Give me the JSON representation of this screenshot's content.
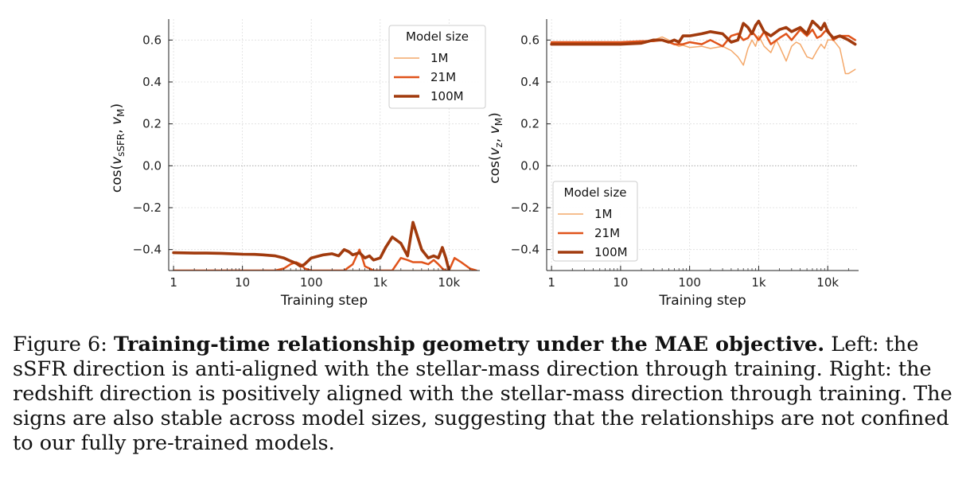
{
  "caption": {
    "label": "Figure 6:",
    "bold": "Training-time relationship geometry under the MAE objective.",
    "text": "Left: the sSFR direction is anti-aligned with the stellar-mass direction through training. Right: the redshift direction is positively aligned with the stellar-mass direction through training. The signs are also stable across model sizes, suggesting that the relationships are not confined to our fully pre-trained models."
  },
  "colors": {
    "1M": "#f4a86a",
    "21M": "#e0531a",
    "100M": "#a13a0d",
    "grid": "#dddddd",
    "zero_line": "#aaaaaa"
  },
  "chart_data": [
    {
      "type": "line",
      "xlabel": "Training step",
      "ylabel_parts": [
        "cos(",
        "v",
        "sSFR",
        ", ",
        "v",
        "M",
        ")"
      ],
      "x_scale": "log",
      "xlim": [
        0.85,
        28000
      ],
      "ylim": [
        -0.5,
        0.7
      ],
      "x_ticks": [
        1,
        10,
        100,
        1000,
        10000
      ],
      "x_tick_labels": [
        "1",
        "10",
        "100",
        "1k",
        "10k"
      ],
      "y_ticks": [
        -0.4,
        -0.2,
        0.0,
        0.2,
        0.4,
        0.6
      ],
      "y_tick_labels": [
        "−0.4",
        "−0.2",
        "0.0",
        "0.2",
        "0.4",
        "0.6"
      ],
      "grid": true,
      "zero_line": true,
      "legend": {
        "title": "Model size",
        "position": "top-right"
      },
      "series": [
        {
          "name": "1M",
          "x": [
            1,
            2,
            5,
            10,
            20,
            40,
            60,
            80,
            100,
            200,
            300,
            400,
            500,
            600,
            700,
            800,
            900,
            1000,
            2000,
            3000,
            4000,
            5000,
            6000,
            8000,
            10000,
            12000,
            15000,
            20000,
            25000
          ],
          "y": [
            -0.5,
            -0.5,
            -0.5,
            -0.5,
            -0.5,
            -0.5,
            -0.5,
            -0.5,
            -0.5,
            -0.5,
            -0.5,
            -0.5,
            -0.5,
            -0.5,
            -0.5,
            -0.5,
            -0.5,
            -0.5,
            -0.5,
            -0.5,
            -0.5,
            -0.5,
            -0.5,
            -0.5,
            -0.5,
            -0.5,
            -0.5,
            -0.5,
            -0.5
          ]
        },
        {
          "name": "21M",
          "x": [
            1,
            2,
            5,
            10,
            20,
            30,
            40,
            50,
            60,
            70,
            80,
            100,
            150,
            200,
            300,
            400,
            500,
            550,
            600,
            700,
            800,
            900,
            1000,
            1200,
            1500,
            2000,
            2500,
            3000,
            4000,
            5000,
            6000,
            7000,
            8000,
            9000,
            10000,
            12000,
            15000,
            20000,
            25000
          ],
          "y": [
            -0.5,
            -0.5,
            -0.5,
            -0.5,
            -0.5,
            -0.5,
            -0.49,
            -0.47,
            -0.46,
            -0.47,
            -0.49,
            -0.5,
            -0.5,
            -0.5,
            -0.5,
            -0.47,
            -0.4,
            -0.44,
            -0.48,
            -0.49,
            -0.5,
            -0.5,
            -0.5,
            -0.5,
            -0.5,
            -0.44,
            -0.45,
            -0.46,
            -0.46,
            -0.47,
            -0.45,
            -0.47,
            -0.49,
            -0.5,
            -0.5,
            -0.44,
            -0.46,
            -0.49,
            -0.5
          ]
        },
        {
          "name": "100M",
          "x": [
            1,
            2,
            3,
            5,
            7,
            10,
            15,
            20,
            30,
            40,
            50,
            60,
            70,
            80,
            100,
            150,
            200,
            250,
            300,
            350,
            400,
            500,
            600,
            700,
            800,
            1000,
            1200,
            1500,
            2000,
            2500,
            3000,
            4000,
            5000,
            6000,
            7000,
            8000,
            9000,
            10000
          ],
          "y": [
            -0.415,
            -0.417,
            -0.417,
            -0.418,
            -0.42,
            -0.422,
            -0.423,
            -0.425,
            -0.43,
            -0.44,
            -0.455,
            -0.465,
            -0.48,
            -0.47,
            -0.44,
            -0.425,
            -0.42,
            -0.43,
            -0.4,
            -0.41,
            -0.425,
            -0.415,
            -0.44,
            -0.43,
            -0.45,
            -0.44,
            -0.39,
            -0.34,
            -0.37,
            -0.43,
            -0.27,
            -0.4,
            -0.44,
            -0.43,
            -0.44,
            -0.39,
            -0.44,
            -0.5
          ]
        }
      ]
    },
    {
      "type": "line",
      "xlabel": "Training step",
      "ylabel_parts": [
        "cos(",
        "v",
        "z",
        ", ",
        "v",
        "M",
        ")"
      ],
      "x_scale": "log",
      "xlim": [
        0.85,
        28000
      ],
      "ylim": [
        -0.5,
        0.7
      ],
      "x_ticks": [
        1,
        10,
        100,
        1000,
        10000
      ],
      "x_tick_labels": [
        "1",
        "10",
        "100",
        "1k",
        "10k"
      ],
      "y_ticks": [
        -0.4,
        -0.2,
        0.0,
        0.2,
        0.4,
        0.6
      ],
      "y_tick_labels": [
        "−0.4",
        "−0.2",
        "0.0",
        "0.2",
        "0.4",
        "0.6"
      ],
      "grid": true,
      "zero_line": true,
      "legend": {
        "title": "Model size",
        "position": "lower-left"
      },
      "series": [
        {
          "name": "1M",
          "x": [
            1,
            2,
            5,
            10,
            20,
            30,
            40,
            50,
            60,
            70,
            80,
            100,
            150,
            200,
            300,
            400,
            500,
            600,
            700,
            800,
            900,
            1000,
            1200,
            1500,
            1800,
            2000,
            2500,
            3000,
            3500,
            4000,
            5000,
            6000,
            7000,
            8000,
            9000,
            10000,
            12000,
            15000,
            18000,
            20000,
            25000
          ],
          "y": [
            0.59,
            0.59,
            0.59,
            0.59,
            0.595,
            0.6,
            0.615,
            0.6,
            0.58,
            0.57,
            0.575,
            0.565,
            0.57,
            0.56,
            0.57,
            0.55,
            0.52,
            0.48,
            0.56,
            0.6,
            0.57,
            0.62,
            0.57,
            0.54,
            0.6,
            0.57,
            0.5,
            0.57,
            0.59,
            0.58,
            0.52,
            0.51,
            0.55,
            0.58,
            0.56,
            0.6,
            0.6,
            0.56,
            0.44,
            0.44,
            0.46
          ]
        },
        {
          "name": "21M",
          "x": [
            1,
            2,
            5,
            10,
            20,
            30,
            40,
            50,
            60,
            70,
            80,
            100,
            150,
            200,
            300,
            400,
            500,
            600,
            700,
            800,
            900,
            1000,
            1200,
            1500,
            2000,
            2500,
            3000,
            4000,
            5000,
            6000,
            7000,
            8000,
            9000,
            10000,
            12000,
            15000,
            20000,
            25000
          ],
          "y": [
            0.59,
            0.59,
            0.59,
            0.59,
            0.595,
            0.595,
            0.6,
            0.59,
            0.58,
            0.58,
            0.58,
            0.59,
            0.58,
            0.6,
            0.57,
            0.62,
            0.63,
            0.6,
            0.61,
            0.64,
            0.62,
            0.6,
            0.64,
            0.58,
            0.61,
            0.63,
            0.6,
            0.65,
            0.62,
            0.65,
            0.61,
            0.62,
            0.64,
            0.65,
            0.6,
            0.62,
            0.62,
            0.6
          ]
        },
        {
          "name": "100M",
          "x": [
            1,
            2,
            5,
            10,
            20,
            30,
            40,
            50,
            60,
            70,
            80,
            100,
            150,
            200,
            300,
            400,
            500,
            600,
            700,
            800,
            900,
            1000,
            1200,
            1500,
            2000,
            2500,
            3000,
            4000,
            5000,
            6000,
            7000,
            8000,
            9000,
            10000,
            12000,
            15000,
            20000,
            25000
          ],
          "y": [
            0.58,
            0.58,
            0.58,
            0.58,
            0.585,
            0.6,
            0.6,
            0.59,
            0.6,
            0.59,
            0.62,
            0.62,
            0.63,
            0.64,
            0.63,
            0.59,
            0.6,
            0.68,
            0.66,
            0.63,
            0.67,
            0.69,
            0.64,
            0.62,
            0.65,
            0.66,
            0.64,
            0.66,
            0.63,
            0.69,
            0.67,
            0.65,
            0.68,
            0.64,
            0.61,
            0.62,
            0.6,
            0.58
          ]
        }
      ]
    }
  ]
}
